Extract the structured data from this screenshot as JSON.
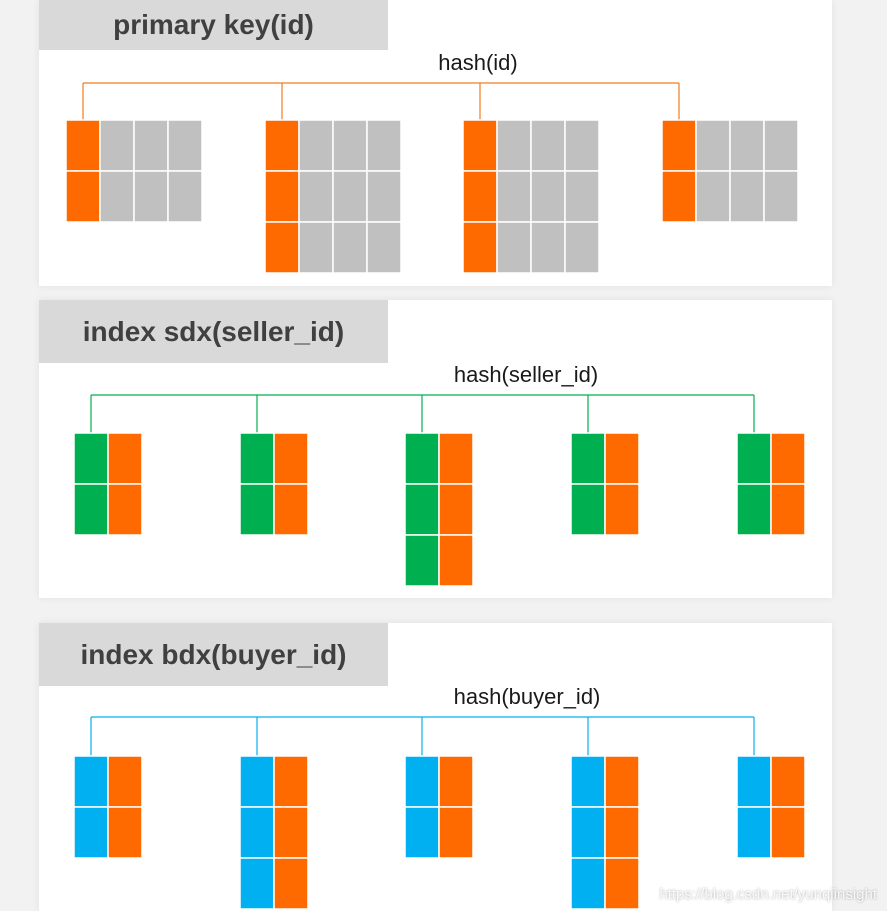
{
  "colors": {
    "orange": "#ff6a00",
    "gray": "#c0c0c0",
    "green": "#00b050",
    "blue": "#00b0f0",
    "primary_line": "#f07d22",
    "seller_line": "#00b050",
    "buyer_line": "#00b0f0"
  },
  "panels": [
    {
      "title": "primary key(id)",
      "hash_label": "hash(id)",
      "key_color": "orange",
      "other_color": "gray",
      "line_color": "primary_line",
      "rows_per_shard": [
        2,
        3,
        3,
        2
      ],
      "other_columns": 3
    },
    {
      "title": "index sdx(seller_id)",
      "hash_label": "hash(seller_id)",
      "key_color": "green",
      "other_color": "orange",
      "line_color": "seller_line",
      "rows_per_shard": [
        2,
        2,
        3,
        2,
        2
      ],
      "other_columns": 1
    },
    {
      "title": "index bdx(buyer_id)",
      "hash_label": "hash(buyer_id)",
      "key_color": "blue",
      "other_color": "orange",
      "line_color": "buyer_line",
      "rows_per_shard": [
        2,
        3,
        2,
        3,
        2
      ],
      "other_columns": 1
    }
  ],
  "watermark": "https://blog.csdn.net/yunqiinsight"
}
